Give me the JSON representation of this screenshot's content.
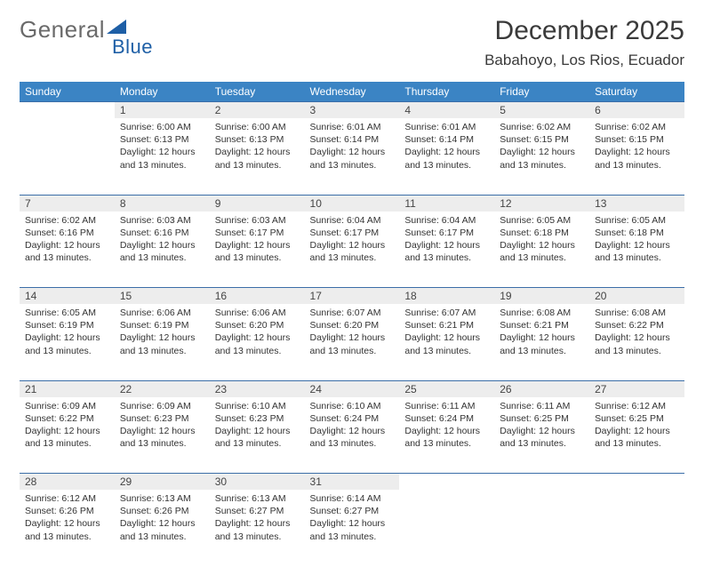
{
  "logo": {
    "text1": "General",
    "text2": "Blue",
    "colors": {
      "gray": "#6a6a6a",
      "blue": "#1e5fa6",
      "triangle": "#1e5fa6"
    }
  },
  "title": "December 2025",
  "location": "Babahoyo, Los Rios, Ecuador",
  "colors": {
    "header_bg": "#3b84c4",
    "header_text": "#ffffff",
    "daynum_bg": "#ededed",
    "week_border": "#3b6ea8",
    "page_bg": "#ffffff",
    "text": "#333333"
  },
  "weekdays": [
    "Sunday",
    "Monday",
    "Tuesday",
    "Wednesday",
    "Thursday",
    "Friday",
    "Saturday"
  ],
  "startOffset": 1,
  "daysInMonth": 31,
  "days": {
    "1": {
      "sunrise": "6:00 AM",
      "sunset": "6:13 PM",
      "daylight": "12 hours and 13 minutes."
    },
    "2": {
      "sunrise": "6:00 AM",
      "sunset": "6:13 PM",
      "daylight": "12 hours and 13 minutes."
    },
    "3": {
      "sunrise": "6:01 AM",
      "sunset": "6:14 PM",
      "daylight": "12 hours and 13 minutes."
    },
    "4": {
      "sunrise": "6:01 AM",
      "sunset": "6:14 PM",
      "daylight": "12 hours and 13 minutes."
    },
    "5": {
      "sunrise": "6:02 AM",
      "sunset": "6:15 PM",
      "daylight": "12 hours and 13 minutes."
    },
    "6": {
      "sunrise": "6:02 AM",
      "sunset": "6:15 PM",
      "daylight": "12 hours and 13 minutes."
    },
    "7": {
      "sunrise": "6:02 AM",
      "sunset": "6:16 PM",
      "daylight": "12 hours and 13 minutes."
    },
    "8": {
      "sunrise": "6:03 AM",
      "sunset": "6:16 PM",
      "daylight": "12 hours and 13 minutes."
    },
    "9": {
      "sunrise": "6:03 AM",
      "sunset": "6:17 PM",
      "daylight": "12 hours and 13 minutes."
    },
    "10": {
      "sunrise": "6:04 AM",
      "sunset": "6:17 PM",
      "daylight": "12 hours and 13 minutes."
    },
    "11": {
      "sunrise": "6:04 AM",
      "sunset": "6:17 PM",
      "daylight": "12 hours and 13 minutes."
    },
    "12": {
      "sunrise": "6:05 AM",
      "sunset": "6:18 PM",
      "daylight": "12 hours and 13 minutes."
    },
    "13": {
      "sunrise": "6:05 AM",
      "sunset": "6:18 PM",
      "daylight": "12 hours and 13 minutes."
    },
    "14": {
      "sunrise": "6:05 AM",
      "sunset": "6:19 PM",
      "daylight": "12 hours and 13 minutes."
    },
    "15": {
      "sunrise": "6:06 AM",
      "sunset": "6:19 PM",
      "daylight": "12 hours and 13 minutes."
    },
    "16": {
      "sunrise": "6:06 AM",
      "sunset": "6:20 PM",
      "daylight": "12 hours and 13 minutes."
    },
    "17": {
      "sunrise": "6:07 AM",
      "sunset": "6:20 PM",
      "daylight": "12 hours and 13 minutes."
    },
    "18": {
      "sunrise": "6:07 AM",
      "sunset": "6:21 PM",
      "daylight": "12 hours and 13 minutes."
    },
    "19": {
      "sunrise": "6:08 AM",
      "sunset": "6:21 PM",
      "daylight": "12 hours and 13 minutes."
    },
    "20": {
      "sunrise": "6:08 AM",
      "sunset": "6:22 PM",
      "daylight": "12 hours and 13 minutes."
    },
    "21": {
      "sunrise": "6:09 AM",
      "sunset": "6:22 PM",
      "daylight": "12 hours and 13 minutes."
    },
    "22": {
      "sunrise": "6:09 AM",
      "sunset": "6:23 PM",
      "daylight": "12 hours and 13 minutes."
    },
    "23": {
      "sunrise": "6:10 AM",
      "sunset": "6:23 PM",
      "daylight": "12 hours and 13 minutes."
    },
    "24": {
      "sunrise": "6:10 AM",
      "sunset": "6:24 PM",
      "daylight": "12 hours and 13 minutes."
    },
    "25": {
      "sunrise": "6:11 AM",
      "sunset": "6:24 PM",
      "daylight": "12 hours and 13 minutes."
    },
    "26": {
      "sunrise": "6:11 AM",
      "sunset": "6:25 PM",
      "daylight": "12 hours and 13 minutes."
    },
    "27": {
      "sunrise": "6:12 AM",
      "sunset": "6:25 PM",
      "daylight": "12 hours and 13 minutes."
    },
    "28": {
      "sunrise": "6:12 AM",
      "sunset": "6:26 PM",
      "daylight": "12 hours and 13 minutes."
    },
    "29": {
      "sunrise": "6:13 AM",
      "sunset": "6:26 PM",
      "daylight": "12 hours and 13 minutes."
    },
    "30": {
      "sunrise": "6:13 AM",
      "sunset": "6:27 PM",
      "daylight": "12 hours and 13 minutes."
    },
    "31": {
      "sunrise": "6:14 AM",
      "sunset": "6:27 PM",
      "daylight": "12 hours and 13 minutes."
    }
  },
  "labels": {
    "sunrise": "Sunrise:",
    "sunset": "Sunset:",
    "daylight": "Daylight:"
  }
}
